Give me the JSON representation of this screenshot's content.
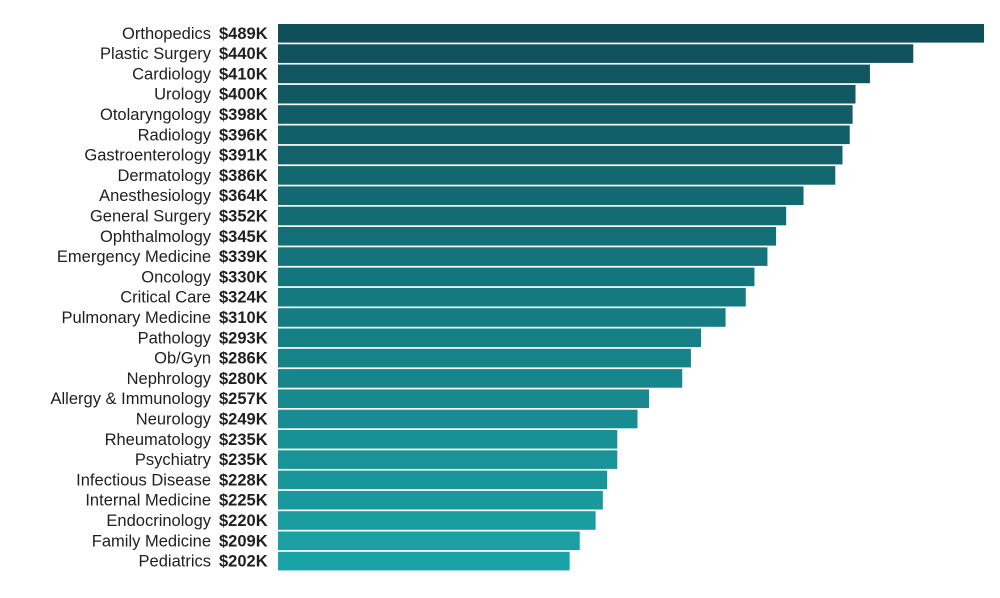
{
  "chart_data": {
    "type": "bar",
    "orientation": "horizontal",
    "value_prefix": "$",
    "value_suffix": "K",
    "grid": false,
    "legend": false,
    "xlim": [
      0,
      489
    ],
    "colors": {
      "darkest": "#0f4f5a",
      "lightest": "#1aa3a6"
    },
    "categories": [
      "Orthopedics",
      "Plastic Surgery",
      "Cardiology",
      "Urology",
      "Otolaryngology",
      "Radiology",
      "Gastroenterology",
      "Dermatology",
      "Anesthesiology",
      "General Surgery",
      "Ophthalmology",
      "Emergency Medicine",
      "Oncology",
      "Critical Care",
      "Pulmonary Medicine",
      "Pathology",
      "Ob/Gyn",
      "Nephrology",
      "Allergy & Immunology",
      "Neurology",
      "Rheumatology",
      "Psychiatry",
      "Infectious Disease",
      "Internal Medicine",
      "Endocrinology",
      "Family Medicine",
      "Pediatrics"
    ],
    "values": [
      489,
      440,
      410,
      400,
      398,
      396,
      391,
      386,
      364,
      352,
      345,
      339,
      330,
      324,
      310,
      293,
      286,
      280,
      257,
      249,
      235,
      235,
      228,
      225,
      220,
      209,
      202
    ],
    "value_labels": [
      "$489K",
      "$440K",
      "$410K",
      "$400K",
      "$398K",
      "$396K",
      "$391K",
      "$386K",
      "$364K",
      "$352K",
      "$345K",
      "$339K",
      "$330K",
      "$324K",
      "$310K",
      "$293K",
      "$286K",
      "$280K",
      "$257K",
      "$249K",
      "$235K",
      "$235K",
      "$228K",
      "$225K",
      "$220K",
      "$209K",
      "$202K"
    ]
  }
}
